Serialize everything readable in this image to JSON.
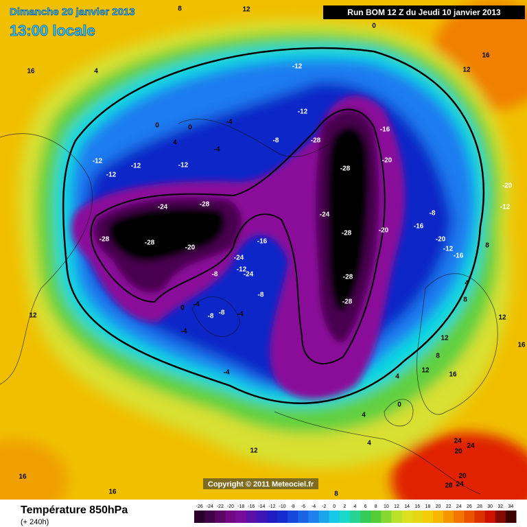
{
  "header": {
    "date": "Dimanche 20 janvier 2013",
    "time": "13:00 locale",
    "run": "Run BOM 12 Z du Jeudi 10 janvier 2013"
  },
  "footer": {
    "title": "Température 850hPa",
    "subtitle": "(+ 240h)",
    "copyright": "Copyright © 2011 Meteociel.fr"
  },
  "colorbar": {
    "ticks": [
      -26,
      -24,
      -22,
      -20,
      -18,
      -16,
      -14,
      -12,
      -10,
      -8,
      -6,
      -4,
      -2,
      0,
      2,
      4,
      6,
      8,
      10,
      12,
      14,
      16,
      18,
      20,
      22,
      24,
      26,
      28,
      30,
      32,
      34
    ]
  },
  "contour_labels": [
    "0",
    "-12",
    "-12",
    "4",
    "16",
    "12",
    "-16",
    "-28",
    "-28",
    "-20",
    "-24",
    "-28",
    "-28",
    "-28",
    "-20",
    "-16",
    "-24",
    "-28",
    "-28",
    "-28",
    "-20",
    "-16",
    "-8",
    "-20",
    "-12",
    "-16",
    "-24",
    "-12",
    "-24",
    "-8",
    "-8",
    "-4",
    "-8",
    "-8",
    "-4",
    "-4",
    "0",
    "-4",
    "-12",
    "-12",
    "-12",
    "-12",
    "-8",
    "-4",
    "-4",
    "0",
    "0",
    "4",
    "-20",
    "-12",
    "4",
    "8",
    "12",
    "16",
    "12",
    "8",
    "4",
    "0",
    "4",
    "4",
    "24",
    "24",
    "20",
    "20",
    "28",
    "24",
    "12",
    "8",
    "16",
    "16",
    "12",
    "16",
    "12",
    "8",
    "16",
    "8",
    "12"
  ]
}
